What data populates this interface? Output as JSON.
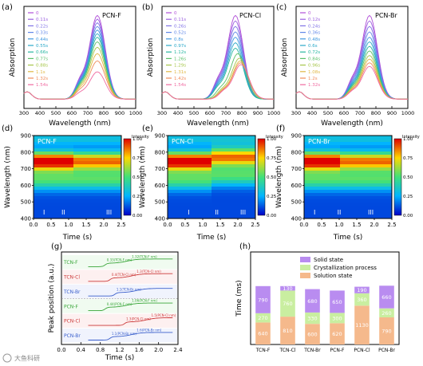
{
  "watermark": "大鱼科研",
  "chart_data": [
    {
      "id": "a",
      "type": "line",
      "panel_label": "(a)",
      "title": "PCN-F",
      "xlabel": "Wavelength (nm)",
      "ylabel": "Absorption",
      "xlim": [
        300,
        1000
      ],
      "xticks": [
        300,
        400,
        500,
        600,
        700,
        800,
        900,
        1000
      ],
      "legend_position": "top-left",
      "series": [
        {
          "name": "0",
          "color": "#b04fd8",
          "peak": 0.92,
          "shift": 0
        },
        {
          "name": "0.11s",
          "color": "#9b5fe0",
          "peak": 0.88,
          "shift": 0
        },
        {
          "name": "0.22s",
          "color": "#7f72e6",
          "peak": 0.84,
          "shift": 0
        },
        {
          "name": "0.33s",
          "color": "#5f86e8",
          "peak": 0.8,
          "shift": 0
        },
        {
          "name": "0.44s",
          "color": "#3f98e0",
          "peak": 0.76,
          "shift": 0
        },
        {
          "name": "0.55s",
          "color": "#2aa8c8",
          "peak": 0.72,
          "shift": 0
        },
        {
          "name": "0.66s",
          "color": "#27b6a0",
          "peak": 0.68,
          "shift": 0
        },
        {
          "name": "0.77s",
          "color": "#5cc06a",
          "peak": 0.63,
          "shift": 0
        },
        {
          "name": "0.88s",
          "color": "#a6c64a",
          "peak": 0.57,
          "shift": 0
        },
        {
          "name": "1.1s",
          "color": "#e0b844",
          "peak": 0.5,
          "shift": 0
        },
        {
          "name": "1.32s",
          "color": "#f08c5a",
          "peak": 0.42,
          "shift": 0
        },
        {
          "name": "1.54s",
          "color": "#f06aa0",
          "peak": 0.3,
          "shift": 0
        }
      ]
    },
    {
      "id": "b",
      "type": "line",
      "panel_label": "(b)",
      "title": "PCN-Cl",
      "xlabel": "Wavelength (nm)",
      "ylabel": "Absorption",
      "xlim": [
        300,
        1000
      ],
      "xticks": [
        300,
        400,
        500,
        600,
        700,
        800,
        900,
        1000
      ],
      "legend_position": "top-left",
      "series": [
        {
          "name": "0",
          "color": "#b04fd8",
          "peak": 0.92,
          "shift": 0
        },
        {
          "name": "0.11s",
          "color": "#9b5fe0",
          "peak": 0.86,
          "shift": 0
        },
        {
          "name": "0.26s",
          "color": "#7f72e6",
          "peak": 0.8,
          "shift": 0
        },
        {
          "name": "0.52s",
          "color": "#5f86e8",
          "peak": 0.74,
          "shift": 0
        },
        {
          "name": "0.8s",
          "color": "#3f98e0",
          "peak": 0.68,
          "shift": 0
        },
        {
          "name": "0.97s",
          "color": "#2aa8c8",
          "peak": 0.62,
          "shift": 0
        },
        {
          "name": "1.12s",
          "color": "#27b6a0",
          "peak": 0.56,
          "shift": 0
        },
        {
          "name": "1.26s",
          "color": "#5cc06a",
          "peak": 0.5,
          "shift": 15
        },
        {
          "name": "1.29s",
          "color": "#a6c64a",
          "peak": 0.45,
          "shift": 25
        },
        {
          "name": "1.31s",
          "color": "#e0b844",
          "peak": 0.42,
          "shift": 30
        },
        {
          "name": "1.42s",
          "color": "#f08c5a",
          "peak": 0.4,
          "shift": 32
        },
        {
          "name": "1.54s",
          "color": "#f06aa0",
          "peak": 0.38,
          "shift": 35
        }
      ]
    },
    {
      "id": "c",
      "type": "line",
      "panel_label": "(c)",
      "title": "PCN-Br",
      "xlabel": "Wavelength (nm)",
      "ylabel": "Absorption",
      "xlim": [
        300,
        1000
      ],
      "xticks": [
        300,
        400,
        500,
        600,
        700,
        800,
        900,
        1000
      ],
      "legend_position": "top-left",
      "series": [
        {
          "name": "0",
          "color": "#b04fd8",
          "peak": 0.92,
          "shift": 0
        },
        {
          "name": "0.12s",
          "color": "#9b5fe0",
          "peak": 0.86,
          "shift": 0
        },
        {
          "name": "0.24s",
          "color": "#7f72e6",
          "peak": 0.8,
          "shift": 0
        },
        {
          "name": "0.36s",
          "color": "#5f86e8",
          "peak": 0.74,
          "shift": 0
        },
        {
          "name": "0.48s",
          "color": "#3f98e0",
          "peak": 0.68,
          "shift": 0
        },
        {
          "name": "0.6s",
          "color": "#2aa8c8",
          "peak": 0.63,
          "shift": 0
        },
        {
          "name": "0.72s",
          "color": "#27b6a0",
          "peak": 0.58,
          "shift": 0
        },
        {
          "name": "0.84s",
          "color": "#5cc06a",
          "peak": 0.53,
          "shift": 0
        },
        {
          "name": "0.96s",
          "color": "#a6c64a",
          "peak": 0.48,
          "shift": 0
        },
        {
          "name": "1.08s",
          "color": "#e0b844",
          "peak": 0.44,
          "shift": 0
        },
        {
          "name": "1.2s",
          "color": "#f08c5a",
          "peak": 0.4,
          "shift": 0
        },
        {
          "name": "1.32s",
          "color": "#f06aa0",
          "peak": 0.36,
          "shift": 0
        }
      ]
    },
    {
      "id": "d",
      "type": "heatmap",
      "panel_label": "(d)",
      "title": "PCN-F",
      "xlabel": "Time (s)",
      "ylabel": "Wavelength (nm)",
      "xlim": [
        0,
        2.5
      ],
      "ylim": [
        400,
        900
      ],
      "xticks": [
        "0.0",
        "0.5",
        "1.0",
        "1.5",
        "2.0",
        "2.5"
      ],
      "yticks": [
        400,
        500,
        600,
        700,
        800,
        900
      ],
      "colorbar_label": "Intensity",
      "colorbar_ticks": [
        "1.00",
        "0.75",
        "0.50",
        "0.25",
        "0.00"
      ],
      "stage_markers": [
        {
          "label": "I",
          "x": 0.3
        },
        {
          "label": "II",
          "x": 0.85
        },
        {
          "label": "III",
          "x": 2.15
        }
      ],
      "band_center": 745,
      "band_shift": 0,
      "transition_time": 1.1
    },
    {
      "id": "e",
      "type": "heatmap",
      "panel_label": "(e)",
      "title": "PCN-Cl",
      "xlabel": "Time (s)",
      "ylabel": "Wavelength (nm)",
      "xlim": [
        0,
        2.5
      ],
      "ylim": [
        400,
        900
      ],
      "xticks": [
        "0.0",
        "0.5",
        "1.0",
        "1.5",
        "2.0",
        "2.5"
      ],
      "yticks": [
        400,
        500,
        600,
        700,
        800,
        900
      ],
      "colorbar_label": "Intensity",
      "colorbar_ticks": [
        "1.00",
        "0.75",
        "0.50",
        "0.25",
        "0.00"
      ],
      "stage_markers": [
        {
          "label": "I",
          "x": 0.6
        },
        {
          "label": "II",
          "x": 1.4
        },
        {
          "label": "III",
          "x": 2.15
        }
      ],
      "band_center": 745,
      "band_shift": 25,
      "transition_time": 1.3
    },
    {
      "id": "f",
      "type": "heatmap",
      "panel_label": "(f)",
      "title": "PCN-Br",
      "xlabel": "Time (s)",
      "ylabel": "Wavelength (nm)",
      "xlim": [
        0,
        2.5
      ],
      "ylim": [
        400,
        900
      ],
      "xticks": [
        "0.0",
        "0.5",
        "1.0",
        "1.5",
        "2.0",
        "2.5"
      ],
      "yticks": [
        400,
        500,
        600,
        700,
        800,
        900
      ],
      "colorbar_label": "Intensity",
      "colorbar_ticks": [
        "1.00",
        "0.75",
        "0.50",
        "0.25",
        "0.00"
      ],
      "stage_markers": [
        {
          "label": "I",
          "x": 0.3
        },
        {
          "label": "II",
          "x": 1.0
        },
        {
          "label": "III",
          "x": 1.9
        }
      ],
      "band_center": 745,
      "band_shift": 0,
      "transition_time": 1.0
    },
    {
      "id": "g",
      "type": "line",
      "panel_label": "(g)",
      "xlabel": "Time (s)",
      "ylabel": "Peak position (a.u.)",
      "xlim": [
        0,
        2.4
      ],
      "xticks": [
        "0.0",
        "0.4",
        "0.8",
        "1.2",
        "1.6",
        "2.0",
        "2.4"
      ],
      "series": [
        {
          "name": "TCN-F",
          "color": "#3aa63a",
          "t1": 0.9,
          "t2": 2.2,
          "label1": "0.33(TCN-F nm)",
          "label2": "1.32(TCN-F nm)"
        },
        {
          "name": "TCN-Cl",
          "color": "#cc3a3a",
          "t1": 1.0,
          "t2": 2.25,
          "label1": "0.4(TCN-Cl nm)",
          "label2": "1.3(TCN-Cl nm)"
        },
        {
          "name": "TCN-Br",
          "color": "#3a5fcc",
          "t1": 1.1,
          "t2": 2.25,
          "label1": "1.1(TCN-Br nm)",
          "label2": ""
        },
        {
          "name": "PCN-F",
          "color": "#3aa63a",
          "t1": 0.9,
          "t2": 2.2,
          "label1": "0.44(PCN-F nm)",
          "label2": "1.06(PCN-F nm)"
        },
        {
          "name": "PCN-Cl",
          "color": "#cc3a3a",
          "t1": 1.3,
          "t2": 2.25,
          "label1": "1.3(PCN-Cl nm)",
          "label2": "1.5(PCN-Cl nm)"
        },
        {
          "name": "PCN-Br",
          "color": "#3a5fcc",
          "t1": 1.0,
          "t2": 2.25,
          "label1": "1.1(PCN-Br nm)",
          "label2": "1.6(PCN-Br nm)"
        }
      ]
    },
    {
      "id": "h",
      "type": "bar",
      "stacked": true,
      "panel_label": "(h)",
      "xlabel": "",
      "ylabel": "Time (ms)",
      "ylim": [
        0,
        2600
      ],
      "categories": [
        "TCN-F",
        "TCN-Cl",
        "TCN-Br",
        "PCN-F",
        "PCN-Cl",
        "PCN-Br"
      ],
      "legend_position": "top",
      "series": [
        {
          "name": "Solution state",
          "color": "#f5b98c",
          "values": [
            640,
            810,
            600,
            620,
            1130,
            790
          ]
        },
        {
          "name": "Crystallization process",
          "color": "#c9eea0",
          "values": [
            270,
            760,
            330,
            300,
            360,
            260
          ]
        },
        {
          "name": "Solid state",
          "color": "#b98cf0",
          "values": [
            790,
            130,
            680,
            650,
            190,
            660
          ]
        }
      ]
    }
  ]
}
